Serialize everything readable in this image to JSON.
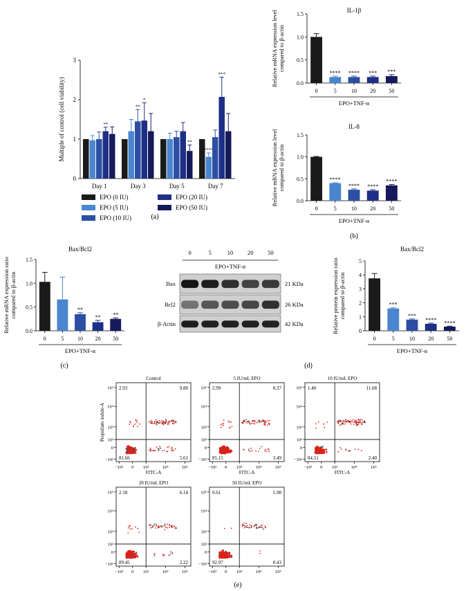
{
  "colors": {
    "black": "#1a1a1a",
    "light_blue": "#4a86cf",
    "mid_blue": "#2c4fa3",
    "dark_blue": "#1e2f86",
    "darkest_blue": "#161a5a",
    "red": "#e02018",
    "grey": "#888888"
  },
  "panel_labels": {
    "a": "(a)",
    "b": "(b)",
    "c": "(c)",
    "d": "(d)",
    "e": "(e)"
  },
  "chart_data": [
    {
      "id": "a",
      "type": "bar",
      "title": "",
      "xlabel": "",
      "ylabel": "Multiple of control (cell viability)",
      "ylim": [
        0,
        3
      ],
      "yticks": [
        "0",
        "1",
        "2",
        "3"
      ],
      "categories": [
        "Day 1",
        "Day 3",
        "Day 5",
        "Day 7"
      ],
      "series": [
        {
          "name": "EPO (0 IU)",
          "color": "#1a1a1a",
          "values": [
            1.0,
            1.0,
            1.0,
            1.0
          ],
          "errors": [
            0,
            0,
            0,
            0
          ],
          "stars": [
            "",
            "",
            "",
            ""
          ]
        },
        {
          "name": "EPO (5 IU)",
          "color": "#4a86cf",
          "values": [
            0.97,
            1.2,
            1.0,
            0.55
          ],
          "errors": [
            0.12,
            0.3,
            0.15,
            0.1
          ],
          "stars": [
            "",
            "",
            "",
            "****"
          ]
        },
        {
          "name": "EPO (10 IU)",
          "color": "#2c4fa3",
          "values": [
            1.0,
            1.45,
            1.05,
            1.05
          ],
          "errors": [
            0.18,
            0.3,
            0.15,
            0.18
          ],
          "stars": [
            "",
            "**",
            "",
            ""
          ]
        },
        {
          "name": "EPO (20 IU)",
          "color": "#1e2f86",
          "values": [
            1.2,
            1.47,
            1.2,
            2.07
          ],
          "errors": [
            0.1,
            0.45,
            0.22,
            0.5
          ],
          "stars": [
            "**",
            "*",
            "",
            "***"
          ]
        },
        {
          "name": "EPO (50 IU)",
          "color": "#161a5a",
          "values": [
            1.13,
            1.2,
            0.7,
            1.2
          ],
          "errors": [
            0.18,
            0.45,
            0.15,
            0.45
          ],
          "stars": [
            "",
            "",
            "**",
            ""
          ]
        }
      ],
      "legend": [
        "EPO (0 IU)",
        "EPO (5 IU)",
        "EPO (10 IU)",
        "EPO (20 IU)",
        "EPO (50 IU)"
      ],
      "legend_position": "bottom"
    },
    {
      "id": "b1",
      "type": "bar",
      "title": "IL-1β",
      "xlabel": "EPO+TNF-α",
      "ylabel": [
        "Relative mRNA expression level",
        "compared to β-actin"
      ],
      "ylim": [
        0,
        1.5
      ],
      "yticks": [
        "0.0",
        "0.5",
        "1.0",
        "1.5"
      ],
      "categories": [
        "0",
        "5",
        "10",
        "20",
        "50"
      ],
      "values": [
        1.0,
        0.13,
        0.13,
        0.13,
        0.15
      ],
      "errors": [
        0.07,
        0.02,
        0.02,
        0.02,
        0.03
      ],
      "stars": [
        "",
        "****",
        "****",
        "***",
        "***"
      ],
      "colors": [
        "#1a1a1a",
        "#4a86cf",
        "#2c4fa3",
        "#1e2f86",
        "#161a5a"
      ]
    },
    {
      "id": "b2",
      "type": "bar",
      "title": "IL-8",
      "xlabel": "EPO+TNF-α",
      "ylabel": [
        "Relative mRNA expression level",
        "compared to β-actin"
      ],
      "ylim": [
        0,
        1.5
      ],
      "yticks": [
        "0.0",
        "0.5",
        "1.0",
        "1.5"
      ],
      "categories": [
        "0",
        "5",
        "10",
        "20",
        "50"
      ],
      "values": [
        1.0,
        0.4,
        0.25,
        0.23,
        0.35
      ],
      "errors": [
        0.01,
        0.01,
        0.02,
        0.02,
        0.02
      ],
      "stars": [
        "",
        "****",
        "****",
        "****",
        "****"
      ],
      "colors": [
        "#1a1a1a",
        "#4a86cf",
        "#2c4fa3",
        "#1e2f86",
        "#161a5a"
      ]
    },
    {
      "id": "c",
      "type": "bar",
      "title": "Bax/Bcl2",
      "xlabel": "EPO+TNF-α",
      "ylabel": [
        "Relative mRNA expression ratio",
        "compared to β-actin"
      ],
      "ylim": [
        0,
        1.5
      ],
      "yticks": [
        "0.0",
        "0.5",
        "1.0",
        "1.5"
      ],
      "categories": [
        "0",
        "5",
        "10",
        "20",
        "50"
      ],
      "values": [
        1.03,
        0.66,
        0.35,
        0.18,
        0.25
      ],
      "errors": [
        0.2,
        0.47,
        0.03,
        0.04,
        0.02
      ],
      "stars": [
        "",
        "",
        "**",
        "**",
        "**"
      ],
      "colors": [
        "#1a1a1a",
        "#4a86cf",
        "#2c4fa3",
        "#1e2f86",
        "#161a5a"
      ]
    },
    {
      "id": "d",
      "type": "bar",
      "title": "Bax/Bcl2",
      "xlabel": "EPO+TNF-α",
      "ylabel": [
        "Relative protein expression ratio",
        "compared to β-actin"
      ],
      "ylim": [
        0,
        5
      ],
      "yticks": [
        "0",
        "1",
        "2",
        "3",
        "4",
        "5"
      ],
      "categories": [
        "0",
        "5",
        "10",
        "20",
        "50"
      ],
      "values": [
        3.75,
        1.6,
        0.8,
        0.5,
        0.3
      ],
      "errors": [
        0.35,
        0.05,
        0.05,
        0.05,
        0.03
      ],
      "stars": [
        "",
        "***",
        "***",
        "****",
        "****"
      ],
      "colors": [
        "#1a1a1a",
        "#4a86cf",
        "#2c4fa3",
        "#1e2f86",
        "#161a5a"
      ]
    },
    {
      "id": "e",
      "type": "scatter",
      "xlabel": "FITC-A",
      "ylabel": "Propidium iodide-A",
      "x_ticks": [
        "−10³",
        "0",
        "10³",
        "10⁴",
        "10⁵"
      ],
      "y_ticks": [
        "10⁵",
        "10⁴",
        "10³",
        "10²",
        "0",
        "−10²"
      ],
      "panels": [
        {
          "title": "Control",
          "quadrants": {
            "ul": "2.93",
            "ur": "9.80",
            "ll": "81.66",
            "lr": "5.61"
          }
        },
        {
          "title": "5 IU/mL EPO",
          "quadrants": {
            "ul": "2.99",
            "ur": "8.37",
            "ll": "85.15",
            "lr": "3.49"
          }
        },
        {
          "title": "10 IU/mL EPO",
          "quadrants": {
            "ul": "1.40",
            "ur": "11.68",
            "ll": "84.51",
            "lr": "2.40"
          }
        },
        {
          "title": "20 IU/mL EPO",
          "quadrants": {
            "ul": "2.18",
            "ur": "6.14",
            "ll": "89.45",
            "lr": "2.22"
          }
        },
        {
          "title": "50 IU/mL EPO",
          "quadrants": {
            "ul": "0.61",
            "ur": "5.98",
            "ll": "92.97",
            "lr": "0.43"
          }
        }
      ]
    }
  ],
  "western_blot": {
    "lanes": [
      "0",
      "5",
      "10",
      "20",
      "50"
    ],
    "group_label": "EPO+TNF-α",
    "rows": [
      {
        "label": "Bax",
        "kda": "21 KDa",
        "intensities": [
          0.95,
          0.9,
          0.8,
          0.7,
          0.75
        ]
      },
      {
        "label": "Bcl2",
        "kda": "26 KDa",
        "intensities": [
          0.45,
          0.6,
          0.65,
          0.68,
          0.8
        ]
      },
      {
        "label": "β-Actin",
        "kda": "42 KDa",
        "intensities": [
          0.9,
          0.88,
          0.88,
          0.88,
          0.88
        ]
      }
    ]
  }
}
